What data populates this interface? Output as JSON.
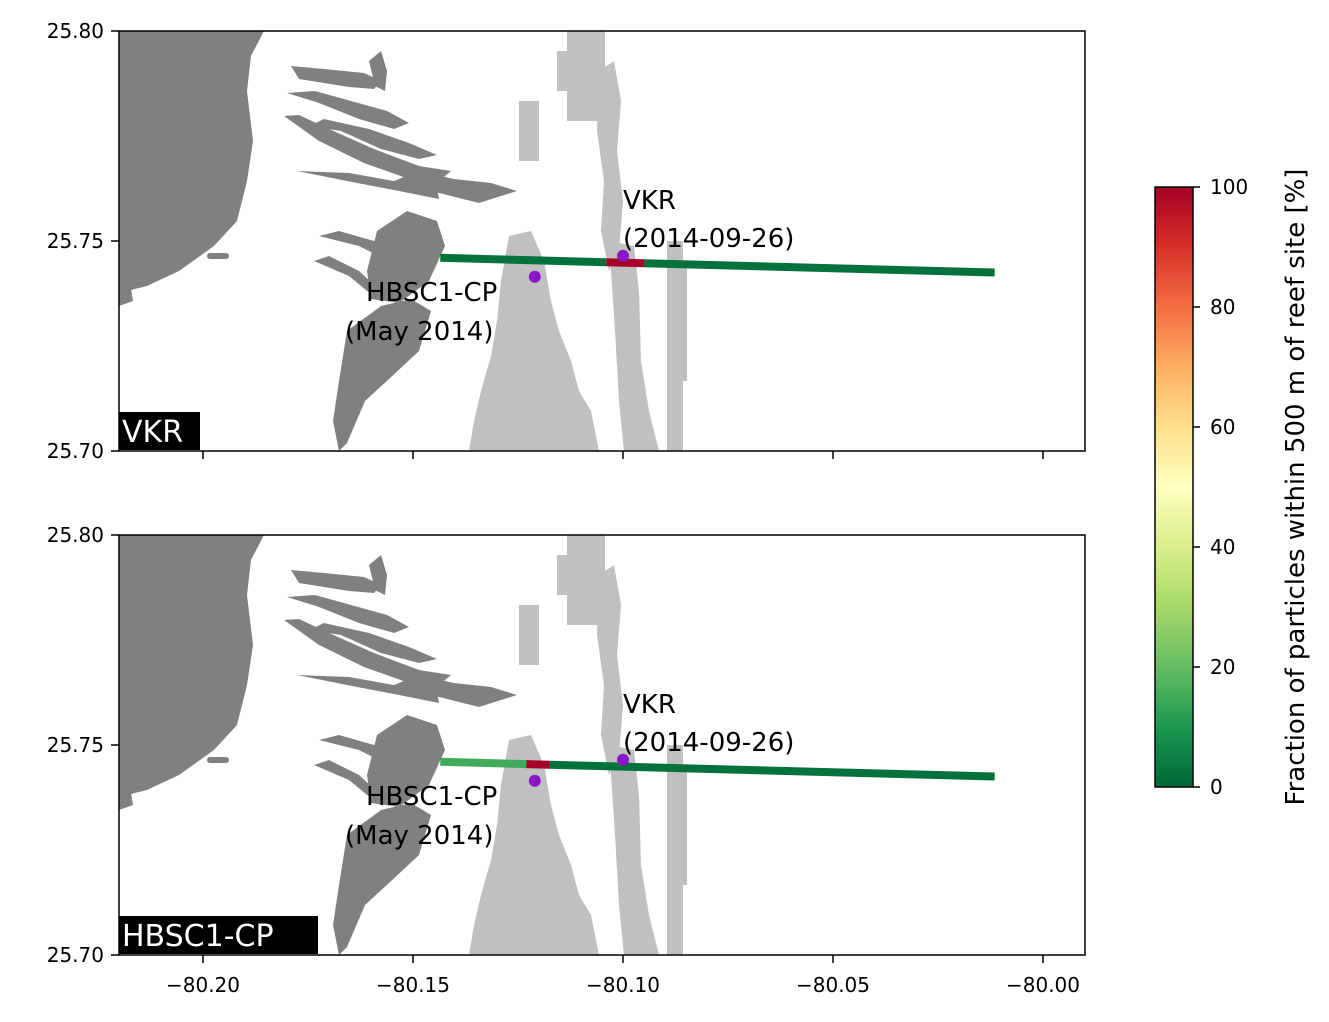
{
  "figure": {
    "colorbar": {
      "label": "Fraction of particles within 500 m of reef site [%]",
      "ticks": [
        "0",
        "20",
        "40",
        "60",
        "80",
        "100"
      ],
      "range": [
        0,
        100
      ],
      "cmap": [
        "#006837",
        "#1a9850",
        "#66bd63",
        "#a6d96a",
        "#d9ef8b",
        "#ffffbf",
        "#fee08b",
        "#fdae61",
        "#f46d43",
        "#d73027",
        "#a50026"
      ]
    },
    "x_ticks": [
      "−80.20",
      "−80.15",
      "−80.10",
      "−80.05",
      "−80.00"
    ],
    "y_ticks": [
      "25.80",
      "25.75",
      "25.70"
    ],
    "colors": {
      "land": "#808080",
      "reef": "#c0c0c0",
      "site_marker": "#8a16c8",
      "tag_bg": "#000000"
    }
  },
  "panels": [
    {
      "tag": "VKR",
      "annotations": {
        "vkr": [
          "VKR",
          "(2014-09-26)"
        ],
        "hbsc": [
          "HBSC1-CP",
          "(May 2014)"
        ]
      }
    },
    {
      "tag": "HBSC1-CP",
      "annotations": {
        "vkr": [
          "VKR",
          "(2014-09-26)"
        ],
        "hbsc": [
          "HBSC1-CP",
          "(May 2014)"
        ]
      }
    }
  ],
  "chart_data": {
    "type": "heatmap",
    "xlim": [
      -80.22,
      -79.99
    ],
    "ylim": [
      25.7,
      25.8
    ],
    "sites": [
      {
        "name": "VKR",
        "lon": -80.1,
        "lat": 25.7465
      },
      {
        "name": "HBSC1-CP",
        "lon": -80.121,
        "lat": 25.7415
      }
    ],
    "transect": {
      "start": {
        "lon": -80.1435,
        "lat": 25.746
      },
      "end": {
        "lon": -80.0115,
        "lat": 25.7425
      }
    },
    "series": [
      {
        "name": "VKR",
        "segments": [
          {
            "lon_from": -80.1435,
            "lon_to": -80.104,
            "value": 2
          },
          {
            "lon_from": -80.104,
            "lon_to": -80.095,
            "value": 100
          },
          {
            "lon_from": -80.095,
            "lon_to": -80.0115,
            "value": 2
          }
        ]
      },
      {
        "name": "HBSC1-CP",
        "segments": [
          {
            "lon_from": -80.1435,
            "lon_to": -80.123,
            "value": 15
          },
          {
            "lon_from": -80.123,
            "lon_to": -80.1175,
            "value": 100
          },
          {
            "lon_from": -80.1175,
            "lon_to": -80.0115,
            "value": 2
          }
        ]
      }
    ]
  }
}
